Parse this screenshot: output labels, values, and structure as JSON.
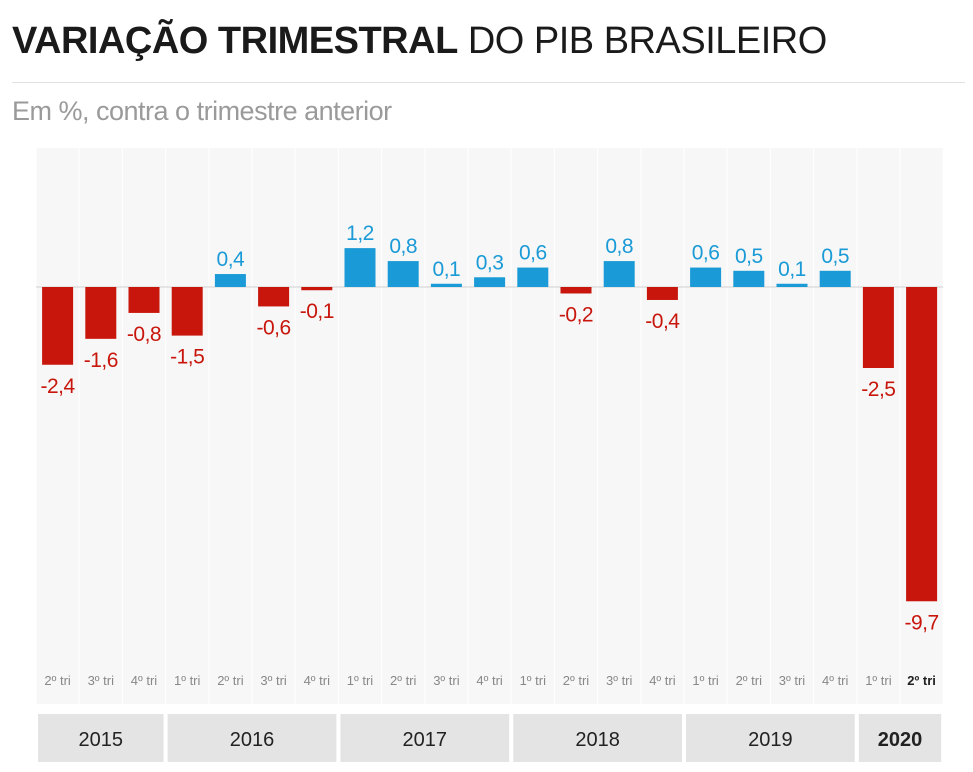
{
  "title_bold": "VARIAÇÃO TRIMESTRAL",
  "title_rest": "DO PIB BRASILEIRO",
  "subtitle": "Em %, contra o trimestre anterior",
  "colors": {
    "positive": "#1a9ad6",
    "negative": "#c8160c",
    "year_bar": "#e4e4e4",
    "column_bg": "#f7f7f7"
  },
  "chart_data": {
    "type": "bar",
    "title": "VARIAÇÃO TRIMESTRAL DO PIB BRASILEIRO",
    "subtitle": "Em %, contra o trimestre anterior",
    "categories": [
      "2º tri",
      "3º tri",
      "4º tri",
      "1º tri",
      "2º tri",
      "3º tri",
      "4º tri",
      "1º tri",
      "2º tri",
      "3º tri",
      "4º tri",
      "1º tri",
      "2º tri",
      "3º tri",
      "4º tri",
      "1º tri",
      "2º tri",
      "3º tri",
      "4º tri",
      "1º tri",
      "2º tri"
    ],
    "values": [
      -2.4,
      -1.6,
      -0.8,
      -1.5,
      0.4,
      -0.6,
      -0.1,
      1.2,
      0.8,
      0.1,
      0.3,
      0.6,
      -0.2,
      0.8,
      -0.4,
      0.6,
      0.5,
      0.1,
      0.5,
      -2.5,
      -9.7
    ],
    "value_labels": [
      "-2,4",
      "-1,6",
      "-0,8",
      "-1,5",
      "0,4",
      "-0,6",
      "-0,1",
      "1,2",
      "0,8",
      "0,1",
      "0,3",
      "0,6",
      "-0,2",
      "0,8",
      "-0,4",
      "0,6",
      "0,5",
      "0,1",
      "0,5",
      "-2,5",
      "-9,7"
    ],
    "years": [
      {
        "label": "2015",
        "count": 3
      },
      {
        "label": "2016",
        "count": 4
      },
      {
        "label": "2017",
        "count": 4
      },
      {
        "label": "2018",
        "count": 4
      },
      {
        "label": "2019",
        "count": 4
      },
      {
        "label": "2020",
        "count": 2
      }
    ],
    "ylim": [
      -10.6,
      4.2
    ],
    "grid": false,
    "legend": "none"
  }
}
